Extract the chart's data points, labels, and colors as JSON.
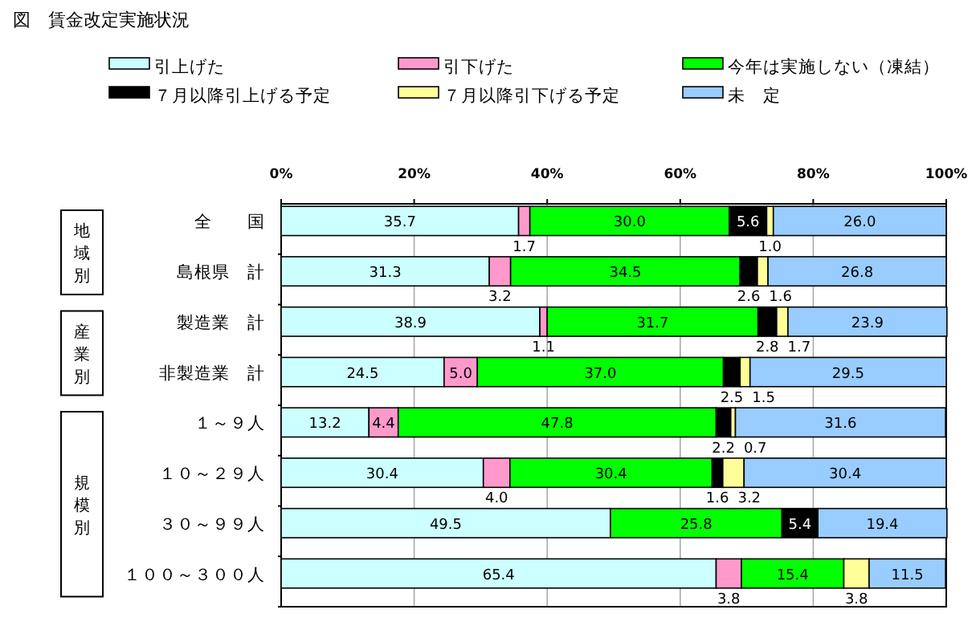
{
  "chart_data": {
    "type": "bar",
    "orientation": "horizontal",
    "stacked": true,
    "title": "図　賃金改定実施状況",
    "categories": [
      "全　　国",
      "島根県　計",
      "製造業　計",
      "非製造業　計",
      "１～９人",
      "１０～２９人",
      "３０～９９人",
      "１００～３００人"
    ],
    "series": [
      {
        "name": "引上げた",
        "color": "#ccffff",
        "values": [
          35.7,
          31.3,
          38.9,
          24.5,
          13.2,
          30.4,
          49.5,
          65.4
        ],
        "value_labels": [
          "35.7",
          "31.3",
          "38.9",
          "24.5",
          "13.2",
          "30.4",
          "49.5",
          "65.4"
        ]
      },
      {
        "name": "引下げた",
        "color": "#ff99cc",
        "values": [
          1.7,
          3.2,
          1.1,
          5.0,
          4.4,
          4.0,
          null,
          3.8
        ],
        "value_labels": [
          "1.7",
          "3.2",
          "1.1",
          "5.0",
          "4.4",
          "4.0",
          null,
          "3.8"
        ]
      },
      {
        "name": "今年は実施しない（凍結）",
        "color": "#00ff00",
        "values": [
          30.0,
          34.5,
          31.7,
          37.0,
          47.8,
          30.4,
          25.8,
          15.4
        ],
        "value_labels": [
          "30.0",
          "34.5",
          "31.7",
          "37.0",
          "47.8",
          "30.4",
          "25.8",
          "15.4"
        ]
      },
      {
        "name": "７月以降引上げる予定",
        "color": "#000000",
        "values": [
          5.6,
          2.6,
          2.8,
          2.5,
          2.2,
          1.6,
          5.4,
          null
        ],
        "value_labels": [
          "5.6",
          "2.6",
          "2.8",
          "2.5",
          "2.2",
          "1.6",
          "5.4",
          null
        ]
      },
      {
        "name": "７月以降引下げる予定",
        "color": "#ffff99",
        "values": [
          1.0,
          1.6,
          1.7,
          1.5,
          0.7,
          3.2,
          null,
          3.8
        ],
        "value_labels": [
          "1.0",
          "1.6",
          "1.7",
          "1.5",
          "0.7",
          "3.2",
          null,
          "3.8"
        ]
      },
      {
        "name": "未　定",
        "color": "#99ccff",
        "values": [
          26.0,
          26.8,
          23.9,
          29.5,
          31.6,
          30.4,
          19.4,
          11.5
        ],
        "value_labels": [
          "26.0",
          "26.8",
          "23.9",
          "29.5",
          "31.6",
          "30.4",
          "19.4",
          "11.5"
        ]
      }
    ],
    "xlim": [
      0,
      100
    ],
    "xticks": [
      {
        "value": 0,
        "label": "0%"
      },
      {
        "value": 20,
        "label": "20%"
      },
      {
        "value": 40,
        "label": "40%"
      },
      {
        "value": 60,
        "label": "60%"
      },
      {
        "value": 80,
        "label": "80%"
      },
      {
        "value": 100,
        "label": "100%"
      }
    ],
    "grid": "x",
    "legend": "top",
    "annotations": [
      "地域別",
      "産業別",
      "規模別"
    ]
  }
}
